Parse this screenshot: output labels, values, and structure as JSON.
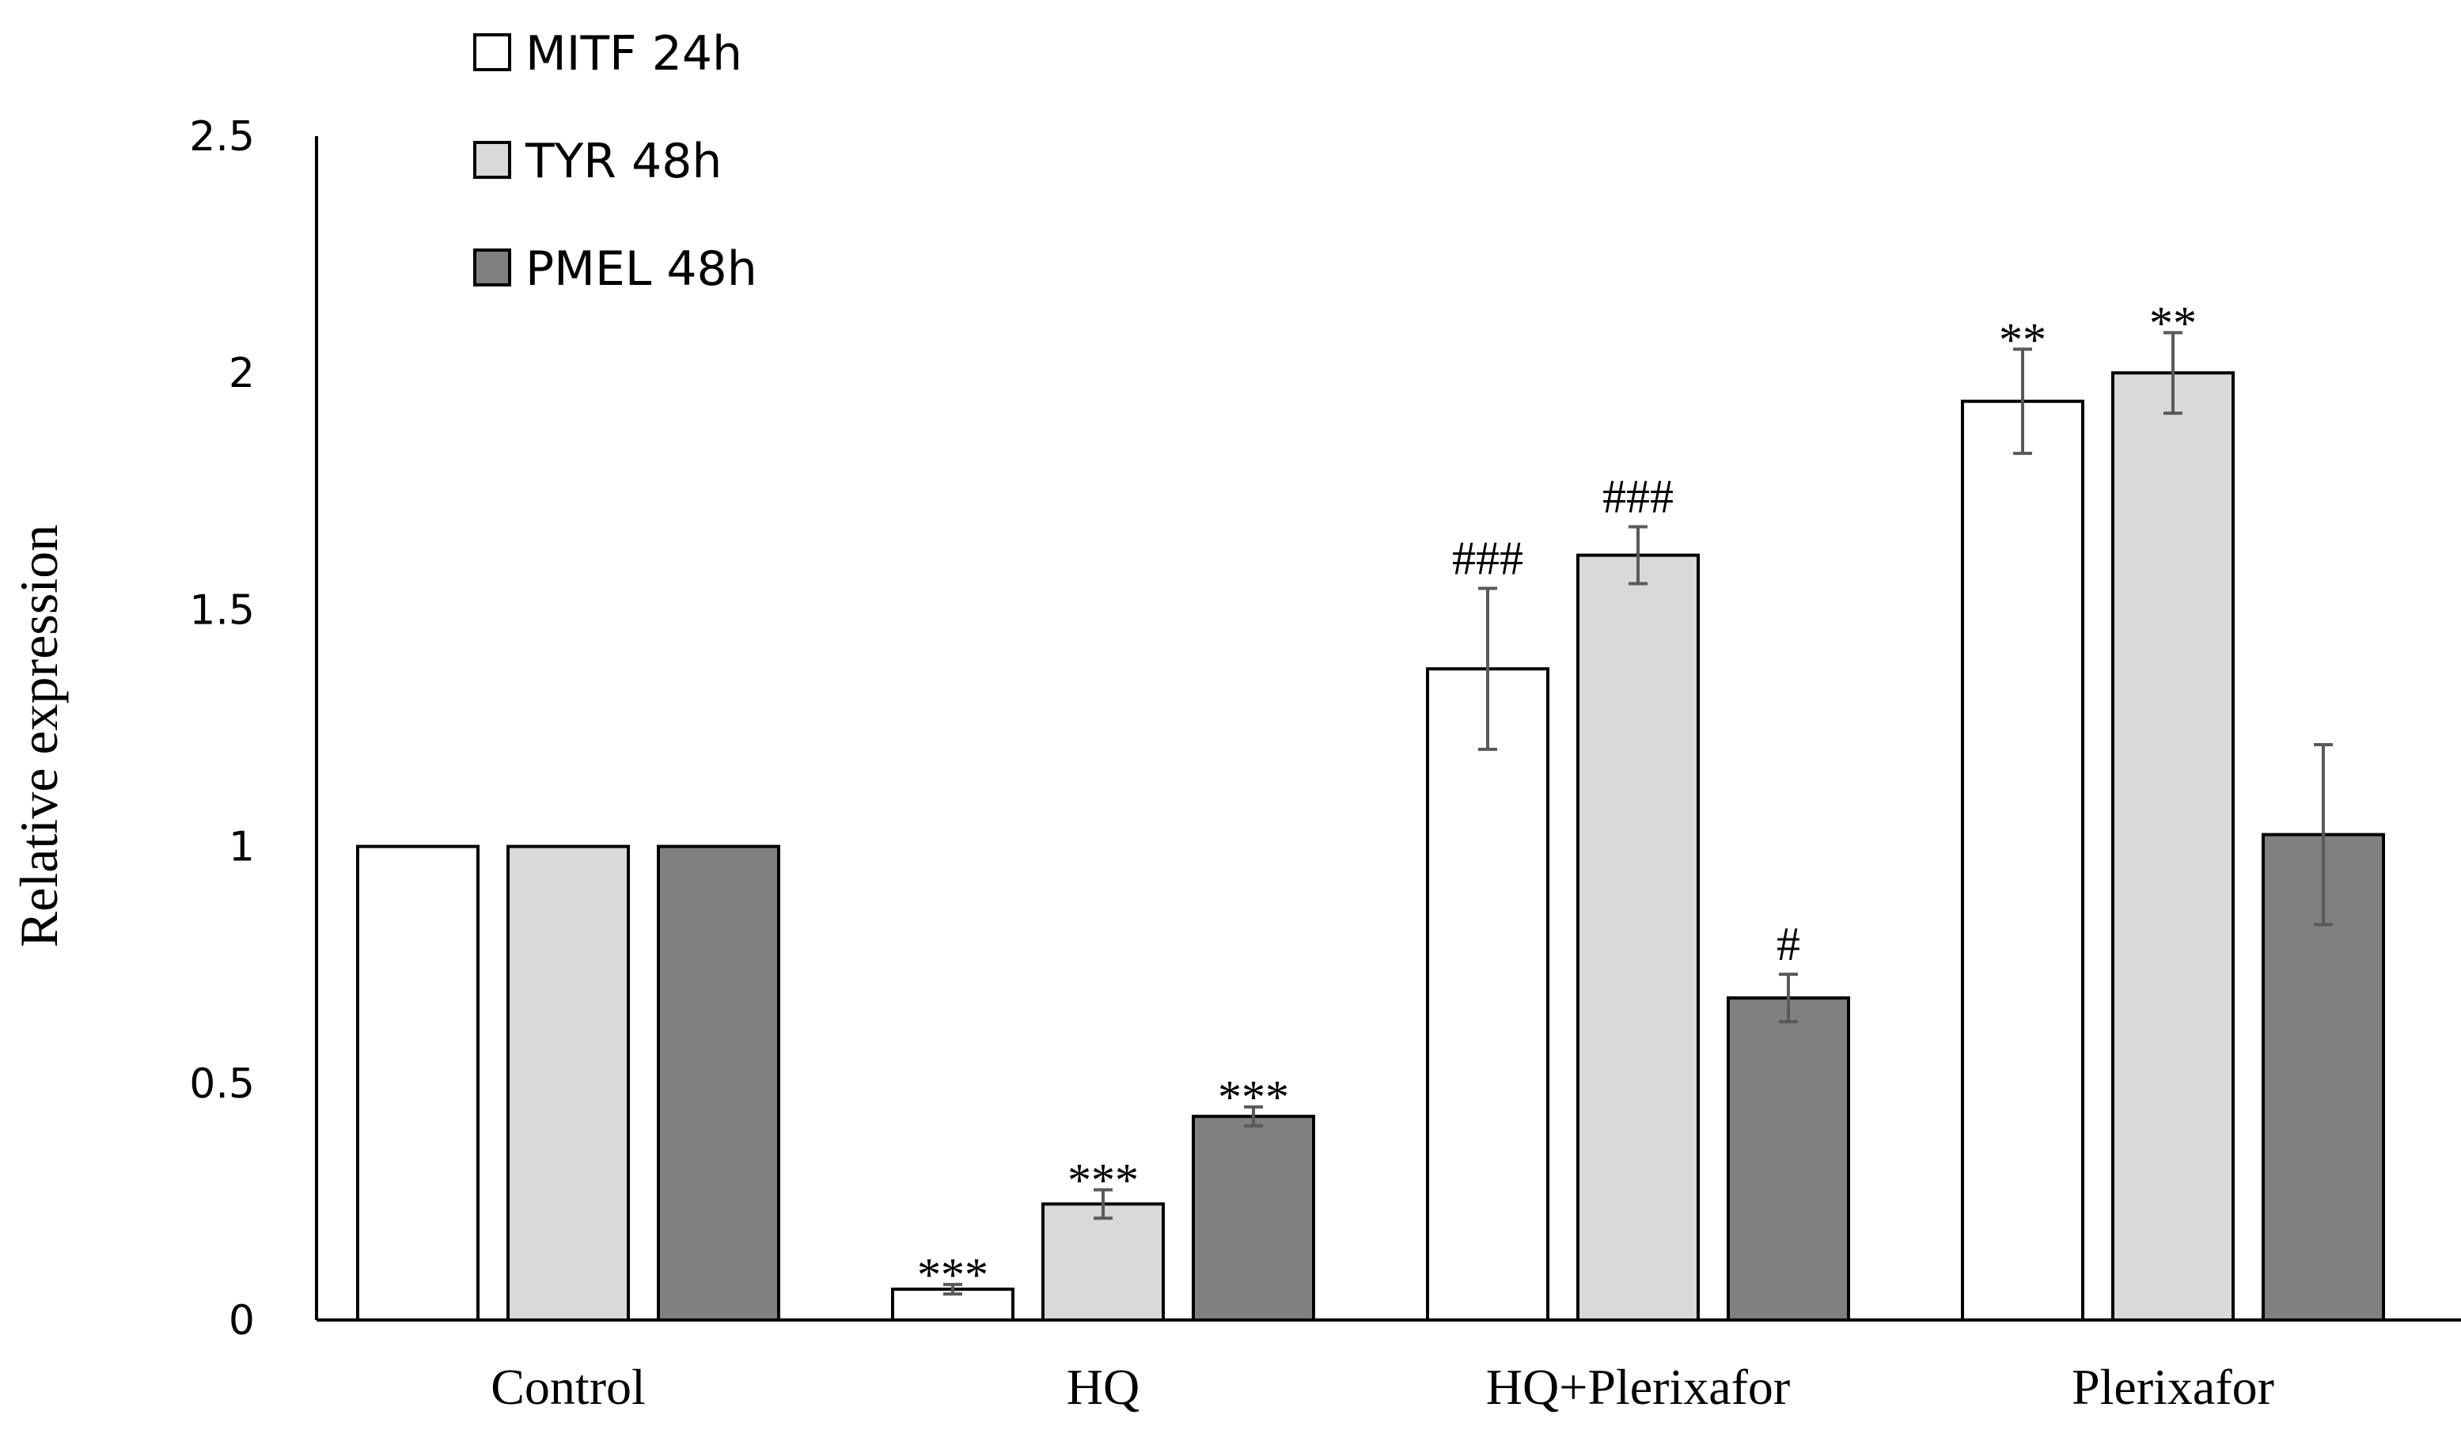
{
  "chart_data": {
    "type": "bar",
    "title": "",
    "xlabel": "",
    "ylabel": "Relative expression",
    "ylim": [
      0,
      2.5
    ],
    "yticks": [
      0,
      0.5,
      1,
      1.5,
      2,
      2.5
    ],
    "ytick_labels": [
      "0",
      "0.5",
      "1",
      "1.5",
      "2",
      "2.5"
    ],
    "grid": false,
    "legend_position": "top-left",
    "categories": [
      "Control",
      "HQ",
      "HQ+Plerixafor",
      "Plerixafor"
    ],
    "series": [
      {
        "name": "MITF 24h",
        "color": "#ffffff",
        "values": [
          1.0,
          0.065,
          1.375,
          1.94
        ],
        "errors": [
          0.0,
          0.01,
          0.17,
          0.11
        ],
        "annotations": [
          "",
          "***",
          "###",
          "**"
        ]
      },
      {
        "name": "TYR 48h",
        "color": "#d9d9d9",
        "values": [
          1.0,
          0.245,
          1.615,
          2.0
        ],
        "errors": [
          0.0,
          0.03,
          0.06,
          0.085
        ],
        "annotations": [
          "",
          "***",
          "###",
          "**"
        ]
      },
      {
        "name": "PMEL 48h",
        "color": "#808080",
        "values": [
          1.0,
          0.43,
          0.68,
          1.025
        ],
        "errors": [
          0.0,
          0.02,
          0.05,
          0.19
        ],
        "annotations": [
          "",
          "***",
          "#",
          ""
        ]
      }
    ]
  }
}
